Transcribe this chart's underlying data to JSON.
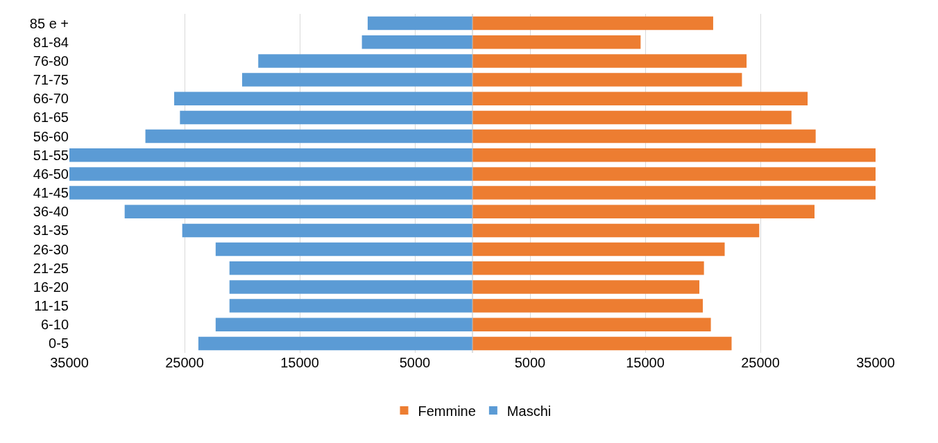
{
  "chart_data": {
    "type": "bar",
    "orientation": "horizontal",
    "categories": [
      "85 e +",
      "81-84",
      "76-80",
      "71-75",
      "66-70",
      "61-65",
      "56-60",
      "51-55",
      "46-50",
      "41-45",
      "36-40",
      "31-35",
      "26-30",
      "21-25",
      "16-20",
      "11-15",
      "6-10",
      "0-5"
    ],
    "series": [
      {
        "name": "Femmine",
        "color": "#ed7d31",
        "values": [
          20900,
          14600,
          23800,
          23400,
          29100,
          27700,
          29800,
          35000,
          35000,
          35000,
          29700,
          24900,
          21900,
          20100,
          19700,
          20000,
          20700,
          22500
        ]
      },
      {
        "name": "Maschi",
        "color": "#5b9bd5",
        "values": [
          -9100,
          -9600,
          -18600,
          -20000,
          -25900,
          -25400,
          -28400,
          -35000,
          -35000,
          -35000,
          -30200,
          -25200,
          -22300,
          -21100,
          -21100,
          -21100,
          -22300,
          -23800
        ]
      }
    ],
    "xlim": [
      -35000,
      35000
    ],
    "xticks": [
      {
        "value": -35000,
        "label": "35000"
      },
      {
        "value": -25000,
        "label": "25000"
      },
      {
        "value": -15000,
        "label": "15000"
      },
      {
        "value": -5000,
        "label": "5000"
      },
      5000,
      15000,
      25000,
      35000
    ],
    "grid": "x",
    "legend": "bottom",
    "stacked": true
  }
}
